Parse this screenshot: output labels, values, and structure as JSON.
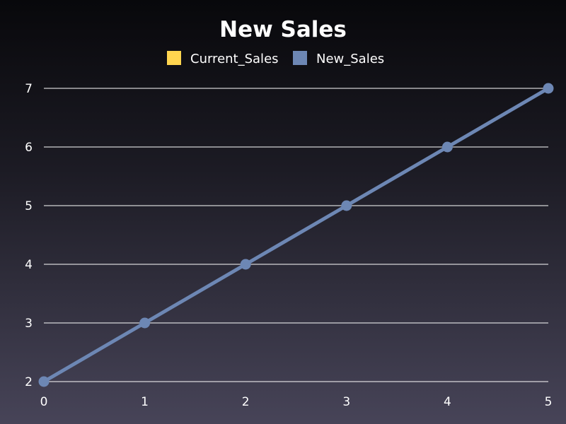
{
  "chart_data": {
    "type": "line",
    "title": "New Sales",
    "xlabel": "",
    "ylabel": "",
    "x": [
      0,
      1,
      2,
      3,
      4,
      5
    ],
    "xlim": [
      0,
      5
    ],
    "ylim": [
      2,
      7
    ],
    "x_ticks": [
      "0",
      "1",
      "2",
      "3",
      "4",
      "5"
    ],
    "y_ticks": [
      "2",
      "3",
      "4",
      "5",
      "6",
      "7"
    ],
    "grid": "horizontal",
    "legend_position": "top-center",
    "legend": [
      {
        "name": "Current_Sales",
        "color": "#ffd54f"
      },
      {
        "name": "New_Sales",
        "color": "#6d87b4"
      }
    ],
    "series": [
      {
        "name": "New_Sales",
        "color": "#6d87b4",
        "values": [
          2,
          3,
          4,
          5,
          6,
          7
        ]
      }
    ]
  }
}
